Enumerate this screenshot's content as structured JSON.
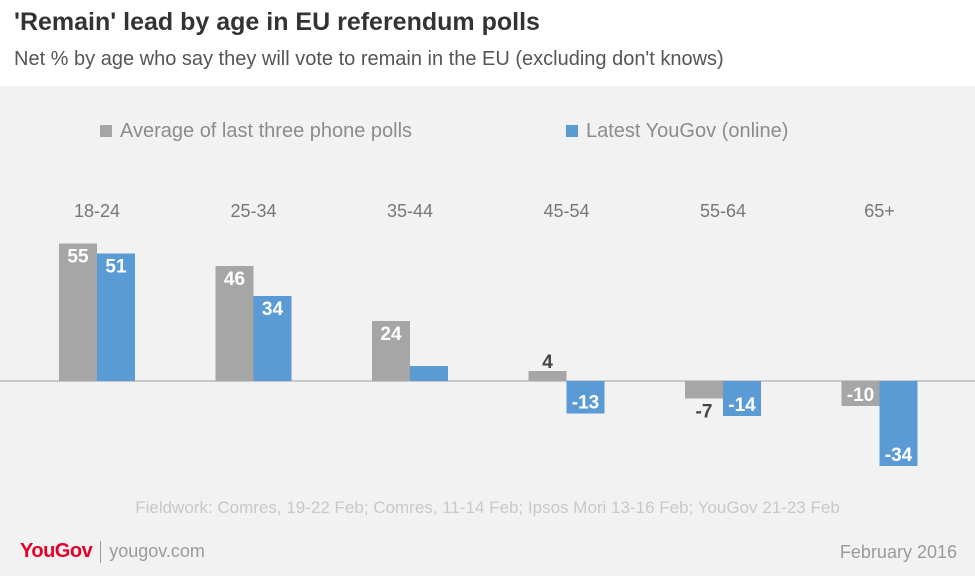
{
  "header": {
    "title": "'Remain' lead by age in EU referendum polls",
    "subtitle": "Net % by age who say they will vote to remain in the EU (excluding don't knows)"
  },
  "chart_data": {
    "type": "bar",
    "title": "'Remain' lead by age in EU referendum polls",
    "subtitle": "Net % by age who say they will vote to remain in the EU (excluding don't knows)",
    "categories": [
      "18-24",
      "25-34",
      "35-44",
      "45-54",
      "55-64",
      "65+"
    ],
    "series": [
      {
        "name": "Average of last three phone polls",
        "values": [
          55,
          46,
          24,
          4,
          -7,
          -10
        ],
        "color": "#a6a6a6"
      },
      {
        "name": "Latest YouGov (online)",
        "values": [
          51,
          34,
          6,
          -13,
          -14,
          -34
        ],
        "color": "#5b9bd5"
      }
    ],
    "data_labels": [
      [
        "55",
        "46",
        "24",
        "4",
        "-7",
        "-10"
      ],
      [
        "51",
        "34",
        "",
        "-13",
        "-14",
        "-34"
      ]
    ],
    "xlabel": "",
    "ylabel": "",
    "ylim": [
      -34,
      55
    ],
    "grid": false,
    "legend": "top",
    "zero_line_color": "#c8c8c8"
  },
  "footer": {
    "fieldwork": "Fieldwork: Comres, 19-22 Feb; Comres, 11-14 Feb; Ipsos Mori 13-16 Feb; YouGov 21-23 Feb",
    "brand": "YouGov",
    "site": "yougov.com",
    "date": "February 2016"
  }
}
